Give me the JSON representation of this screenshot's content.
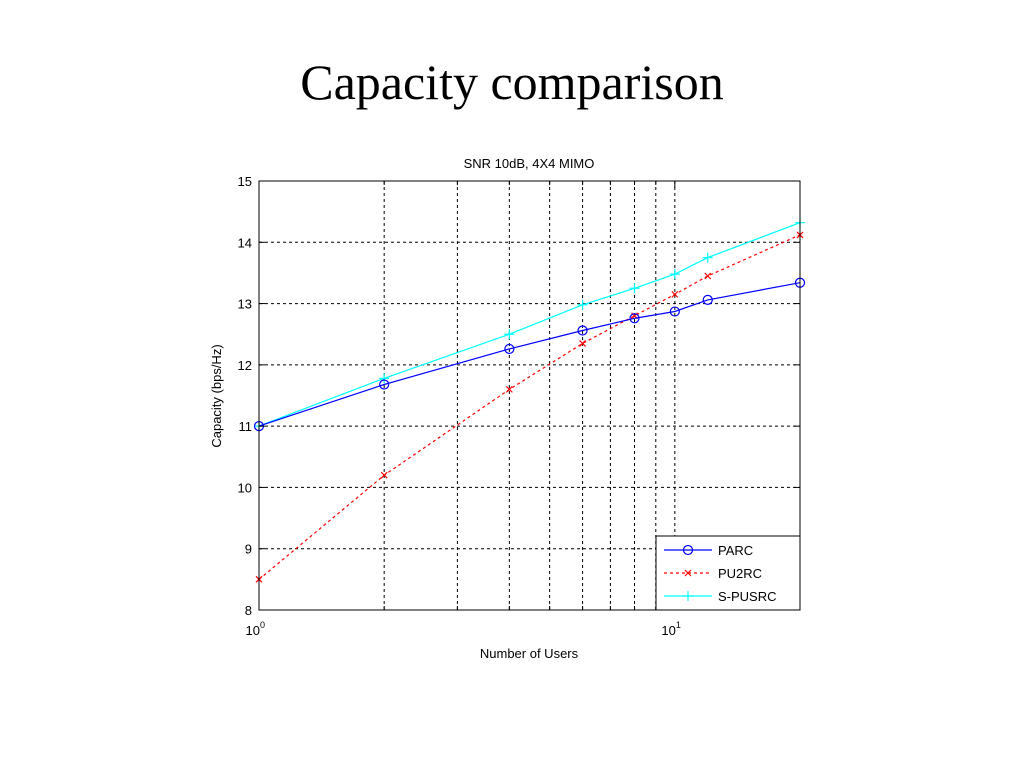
{
  "slide": {
    "title": "Capacity comparison"
  },
  "chart_data": {
    "type": "line",
    "title": "SNR 10dB, 4X4 MIMO",
    "xlabel": "Number of Users",
    "ylabel": "Capacity (bps/Hz)",
    "xscale": "log",
    "xlim": [
      1,
      20
    ],
    "ylim": [
      8,
      15
    ],
    "yticks": [
      8,
      9,
      10,
      11,
      12,
      13,
      14,
      15
    ],
    "xtick_labels": [
      {
        "value": 1,
        "base": "10",
        "exp": "0"
      },
      {
        "value": 10,
        "base": "10",
        "exp": "1"
      }
    ],
    "grid": true,
    "legend_position": "bottom-right",
    "series": [
      {
        "name": "PARC",
        "color": "#0000ff",
        "line_style": "solid",
        "marker": "circle",
        "x": [
          1,
          2,
          4,
          6,
          8,
          10,
          12,
          20
        ],
        "y": [
          11.0,
          11.68,
          12.26,
          12.56,
          12.76,
          12.87,
          13.06,
          13.34
        ]
      },
      {
        "name": "PU2RC",
        "color": "#ff0000",
        "line_style": "dashed",
        "marker": "x",
        "x": [
          1,
          2,
          4,
          6,
          8,
          10,
          12,
          20
        ],
        "y": [
          8.5,
          10.2,
          11.6,
          12.35,
          12.8,
          13.15,
          13.45,
          14.12
        ]
      },
      {
        "name": "S-PUSRC",
        "color": "#00ffff",
        "line_style": "solid",
        "marker": "plus",
        "x": [
          1,
          2,
          4,
          6,
          8,
          10,
          12,
          20
        ],
        "y": [
          11.0,
          11.78,
          12.5,
          12.98,
          13.25,
          13.48,
          13.75,
          14.32
        ]
      }
    ]
  }
}
